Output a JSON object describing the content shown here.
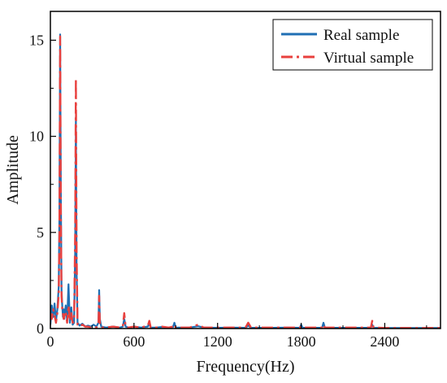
{
  "chart_data": {
    "type": "line",
    "title": "",
    "xlabel": "Frequency(Hz)",
    "ylabel": "Amplitude",
    "xlim": [
      0,
      2800
    ],
    "ylim": [
      0,
      16.5
    ],
    "xticks": [
      0,
      600,
      1200,
      1800,
      2400
    ],
    "xtick_labels": [
      "0",
      "600",
      "1200",
      "1800",
      "2400"
    ],
    "yticks": [
      0,
      5,
      10,
      15
    ],
    "ytick_labels": [
      "0",
      "5",
      "10",
      "15"
    ],
    "grid": false,
    "legend": "top-right",
    "series": [
      {
        "name": "Real sample",
        "color": "#1f6fb4",
        "style": "solid",
        "x": [
          0,
          10,
          20,
          30,
          40,
          50,
          60,
          65,
          70,
          75,
          80,
          85,
          90,
          95,
          100,
          110,
          120,
          130,
          140,
          150,
          160,
          170,
          178,
          183,
          188,
          195,
          210,
          230,
          250,
          270,
          290,
          310,
          330,
          345,
          350,
          355,
          365,
          400,
          450,
          500,
          520,
          530,
          540,
          560,
          600,
          650,
          700,
          710,
          720,
          760,
          800,
          850,
          880,
          890,
          900,
          950,
          1000,
          1060,
          1100,
          1200,
          1300,
          1400,
          1420,
          1440,
          1500,
          1600,
          1700,
          1790,
          1800,
          1810,
          1900,
          1950,
          1960,
          1970,
          2050,
          2150,
          2250,
          2300,
          2310,
          2320,
          2400,
          2500,
          2600,
          2700,
          2800
        ],
        "y": [
          0.2,
          1.2,
          0.6,
          1.3,
          0.4,
          1.0,
          2.2,
          6.0,
          15.3,
          7.0,
          2.0,
          1.2,
          0.6,
          1.0,
          0.5,
          1.2,
          0.4,
          2.3,
          0.3,
          1.1,
          0.2,
          0.3,
          4.0,
          11.0,
          3.0,
          0.3,
          0.15,
          0.25,
          0.1,
          0.15,
          0.1,
          0.2,
          0.1,
          0.3,
          2.0,
          0.5,
          0.1,
          0.05,
          0.1,
          0.05,
          0.1,
          0.5,
          0.1,
          0.05,
          0.1,
          0.05,
          0.1,
          0.3,
          0.05,
          0.05,
          0.08,
          0.05,
          0.08,
          0.3,
          0.05,
          0.05,
          0.05,
          0.12,
          0.05,
          0.04,
          0.05,
          0.04,
          0.15,
          0.04,
          0.04,
          0.04,
          0.05,
          0.04,
          0.2,
          0.04,
          0.04,
          0.04,
          0.3,
          0.04,
          0.04,
          0.04,
          0.04,
          0.04,
          0.2,
          0.04,
          0.03,
          0.03,
          0.03,
          0.03,
          0.03
        ]
      },
      {
        "name": "Virtual sample",
        "color": "#e8403e",
        "style": "dash-dot",
        "x": [
          0,
          10,
          20,
          30,
          40,
          50,
          60,
          65,
          70,
          75,
          80,
          85,
          90,
          95,
          100,
          110,
          120,
          130,
          140,
          150,
          160,
          170,
          178,
          183,
          188,
          195,
          210,
          230,
          250,
          270,
          290,
          310,
          330,
          345,
          350,
          355,
          365,
          400,
          450,
          500,
          520,
          530,
          540,
          560,
          600,
          650,
          700,
          710,
          720,
          760,
          800,
          850,
          880,
          890,
          900,
          950,
          1000,
          1060,
          1100,
          1200,
          1300,
          1400,
          1420,
          1440,
          1500,
          1600,
          1700,
          1790,
          1800,
          1810,
          1900,
          1950,
          1960,
          1970,
          2050,
          2150,
          2250,
          2300,
          2310,
          2320,
          2400,
          2500,
          2600,
          2700,
          2800
        ],
        "y": [
          0.8,
          0.5,
          1.0,
          0.7,
          0.3,
          0.8,
          1.8,
          5.0,
          15.2,
          6.0,
          1.7,
          1.0,
          0.8,
          0.5,
          0.6,
          0.9,
          0.3,
          1.2,
          0.4,
          0.8,
          0.3,
          0.4,
          5.0,
          13.0,
          4.0,
          0.2,
          0.1,
          0.2,
          0.1,
          0.1,
          0.05,
          0.1,
          0.05,
          0.2,
          1.7,
          0.3,
          0.05,
          0.05,
          0.1,
          0.05,
          0.1,
          0.8,
          0.1,
          0.05,
          0.1,
          0.05,
          0.15,
          0.4,
          0.05,
          0.05,
          0.1,
          0.05,
          0.1,
          0.2,
          0.05,
          0.05,
          0.05,
          0.2,
          0.05,
          0.05,
          0.05,
          0.05,
          0.3,
          0.05,
          0.05,
          0.05,
          0.05,
          0.05,
          0.1,
          0.05,
          0.05,
          0.05,
          0.2,
          0.05,
          0.05,
          0.05,
          0.05,
          0.05,
          0.4,
          0.05,
          0.03,
          0.03,
          0.03,
          0.03,
          0.03
        ]
      }
    ]
  }
}
